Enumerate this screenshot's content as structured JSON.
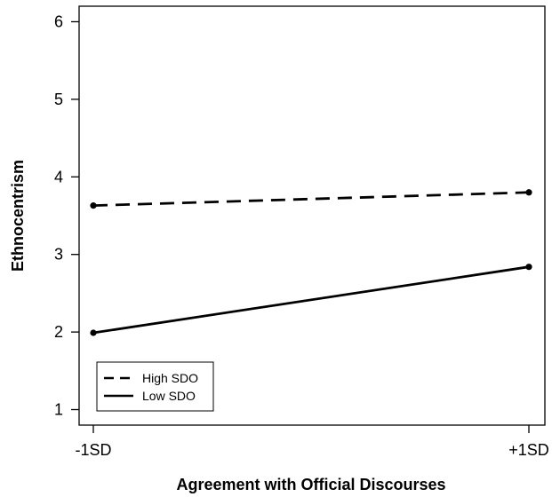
{
  "chart_data": {
    "type": "line",
    "title": "",
    "xlabel": "Agreement with Official Discourses",
    "ylabel": "Ethnocentrism",
    "categories": [
      "-1SD",
      "+1SD"
    ],
    "ylim": [
      0.8,
      6.2
    ],
    "yticks": [
      1,
      2,
      3,
      4,
      5,
      6
    ],
    "grid": false,
    "legend_position": "bottom-left",
    "series": [
      {
        "name": "High SDO",
        "values": [
          3.63,
          3.8
        ],
        "style": "dashed",
        "color": "#000000"
      },
      {
        "name": "Low SDO",
        "values": [
          1.99,
          2.84
        ],
        "style": "solid",
        "color": "#000000"
      }
    ]
  }
}
